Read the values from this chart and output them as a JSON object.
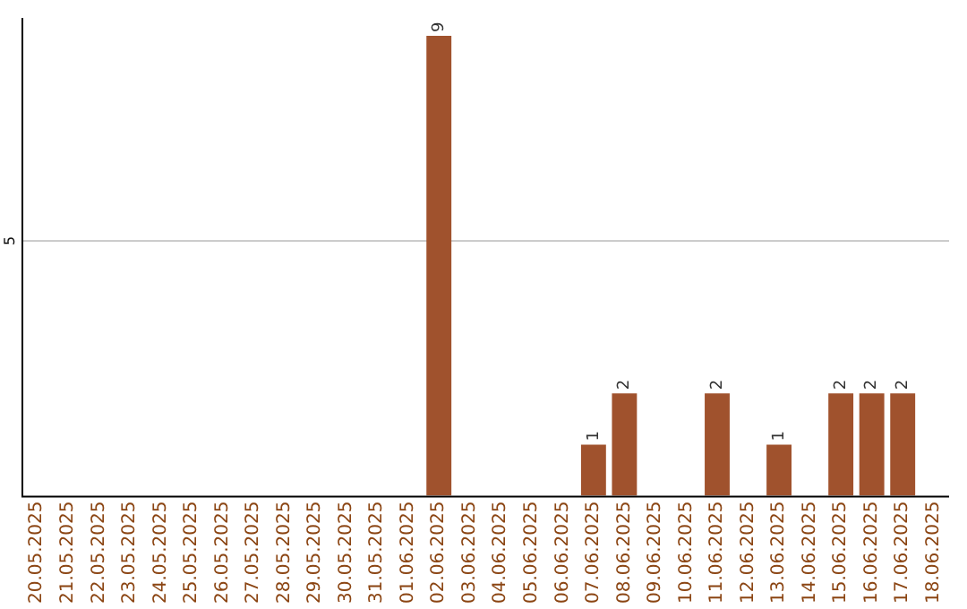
{
  "chart_data": {
    "type": "bar",
    "data_labels": true,
    "ylim": [
      0,
      9.35
    ],
    "categories": [
      "20.05.2025",
      "21.05.2025",
      "22.05.2025",
      "23.05.2025",
      "24.05.2025",
      "25.05.2025",
      "26.05.2025",
      "27.05.2025",
      "28.05.2025",
      "29.05.2025",
      "30.05.2025",
      "31.05.2025",
      "01.06.2025",
      "02.06.2025",
      "03.06.2025",
      "04.06.2025",
      "05.06.2025",
      "06.06.2025",
      "07.06.2025",
      "08.06.2025",
      "09.06.2025",
      "10.06.2025",
      "11.06.2025",
      "12.06.2025",
      "13.06.2025",
      "14.06.2025",
      "15.06.2025",
      "16.06.2025",
      "17.06.2025",
      "18.06.2025"
    ],
    "values": [
      null,
      null,
      null,
      null,
      null,
      null,
      null,
      null,
      null,
      null,
      null,
      null,
      null,
      9,
      null,
      null,
      null,
      null,
      1,
      2,
      null,
      null,
      2,
      null,
      1,
      null,
      2,
      2,
      2,
      null
    ],
    "ref_lines": [
      {
        "axis": "y",
        "value": 5,
        "label": "5",
        "color": "#cccccc"
      }
    ],
    "color": "#a0522d",
    "legend": false
  }
}
